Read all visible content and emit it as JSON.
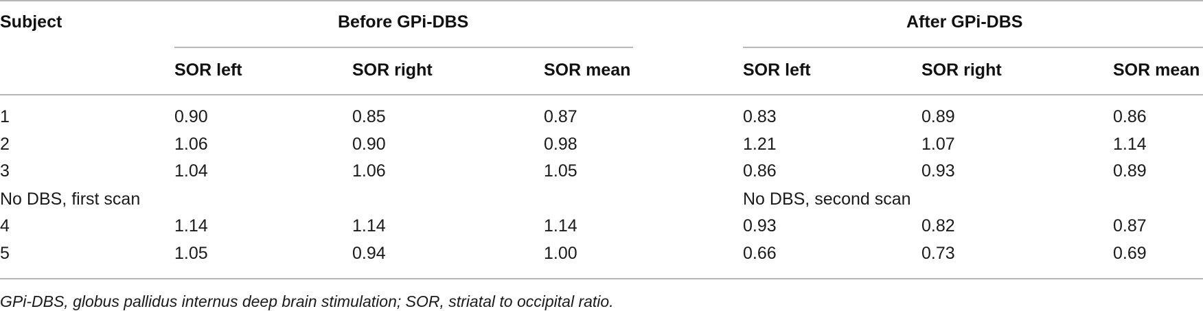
{
  "table": {
    "col_subject": "Subject",
    "group_before": "Before GPi-DBS",
    "group_after": "After GPi-DBS",
    "subheads": [
      "SOR left",
      "SOR right",
      "SOR mean",
      "SOR left",
      "SOR right",
      "SOR mean"
    ],
    "rows": [
      {
        "subject": "1",
        "values": [
          "0.90",
          "0.85",
          "0.87",
          "0.83",
          "0.89",
          "0.86"
        ]
      },
      {
        "subject": "2",
        "values": [
          "1.06",
          "0.90",
          "0.98",
          "1.21",
          "1.07",
          "1.14"
        ]
      },
      {
        "subject": "3",
        "values": [
          "1.04",
          "1.06",
          "1.05",
          "0.86",
          "0.93",
          "0.89"
        ]
      },
      {
        "subject": "4",
        "values": [
          "1.14",
          "1.14",
          "1.14",
          "0.93",
          "0.82",
          "0.87"
        ]
      },
      {
        "subject": "5",
        "values": [
          "1.05",
          "0.94",
          "1.00",
          "0.66",
          "0.73",
          "0.69"
        ]
      }
    ],
    "section_note_before": "No DBS, first scan",
    "section_note_after": "No DBS, second scan",
    "footnote": "GPi-DBS, globus pallidus internus deep brain stimulation; SOR, striatal to occipital ratio."
  }
}
